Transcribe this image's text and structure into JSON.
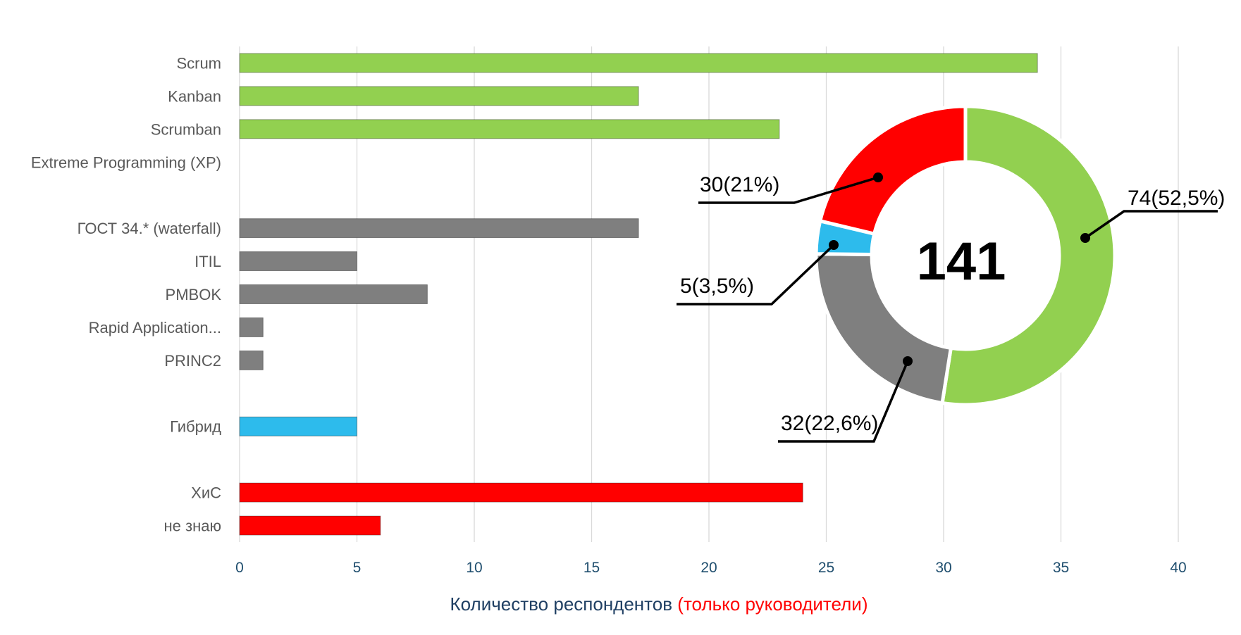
{
  "chart_data": [
    {
      "type": "bar",
      "orientation": "horizontal",
      "categories": [
        "Scrum",
        "Kanban",
        "Scrumban",
        "Extreme Programming (XP)",
        "",
        "ГОСТ 34.* (waterfall)",
        "ITIL",
        "PMBOK",
        "Rapid Application...",
        "PRINC2",
        "",
        "Гибрид",
        "",
        "ХиС",
        "не знаю"
      ],
      "values": [
        34,
        17,
        23,
        0,
        null,
        17,
        5,
        8,
        1,
        1,
        null,
        5,
        null,
        24,
        6
      ],
      "bar_colors": [
        "#92d050",
        "#92d050",
        "#92d050",
        "#92d050",
        null,
        "#7f7f7f",
        "#7f7f7f",
        "#7f7f7f",
        "#7f7f7f",
        "#7f7f7f",
        null,
        "#2dbbec",
        null,
        "#ff0000",
        "#ff0000"
      ],
      "xlim": [
        0,
        40
      ],
      "xticks": [
        "0",
        "5",
        "10",
        "15",
        "20",
        "25",
        "30",
        "35",
        "40"
      ],
      "xlabel_parts": [
        {
          "text": "Количество респондентов ",
          "color": "#1f3f63"
        },
        {
          "text": "(только руководители)",
          "color": "#ff0000"
        }
      ],
      "grid": "vertical"
    },
    {
      "type": "pie",
      "donut": true,
      "center_label": "141",
      "slices": [
        {
          "value": 74,
          "label": "74(52,5%)",
          "color": "#92d050"
        },
        {
          "value": 32,
          "label": "32(22,6%)",
          "color": "#7f7f7f"
        },
        {
          "value": 5,
          "label": "5(3,5%)",
          "color": "#2dbbec"
        },
        {
          "value": 30,
          "label": "30(21%)",
          "color": "#ff0000"
        }
      ]
    }
  ]
}
